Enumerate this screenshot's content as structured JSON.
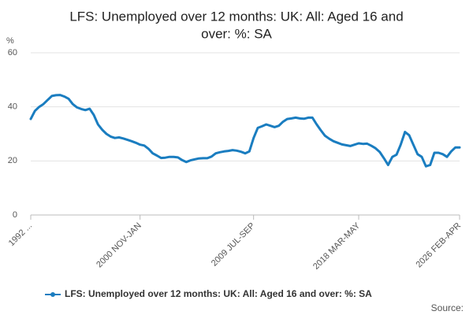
{
  "chart_data": {
    "type": "line",
    "title": [
      "LFS: Unemployed over 12 months: UK: All: Aged 16 and",
      "over: %: SA"
    ],
    "y_label": "%",
    "source": "Source:",
    "categories": [
      "1992 ...",
      null,
      null,
      null,
      null,
      null,
      null,
      null,
      null,
      null,
      null,
      null,
      null,
      null,
      null,
      null,
      null,
      null,
      null,
      null,
      null,
      null,
      null,
      null,
      null,
      null,
      "2000 NOV-JAN",
      null,
      null,
      null,
      null,
      null,
      null,
      null,
      null,
      null,
      null,
      null,
      null,
      null,
      null,
      null,
      null,
      null,
      null,
      null,
      null,
      null,
      null,
      null,
      null,
      null,
      null,
      "2009 JUL-SEP",
      null,
      null,
      null,
      null,
      null,
      null,
      null,
      null,
      null,
      null,
      null,
      null,
      null,
      null,
      null,
      null,
      null,
      null,
      null,
      null,
      null,
      null,
      null,
      null,
      "2018 MAR-MAY",
      null,
      null,
      null,
      null,
      null,
      null,
      null,
      null,
      null,
      null,
      null,
      null,
      null,
      null,
      null,
      null,
      null,
      null,
      null,
      null,
      null,
      null,
      null,
      "2026 FEB-APR"
    ],
    "series": [
      {
        "name": "LFS: Unemployed over 12 months: UK: All: Aged 16 and over: %: SA",
        "color": "#1a7dc0",
        "values": [
          35.5,
          38.5,
          40,
          41,
          42.5,
          44,
          44.3,
          44.4,
          43.8,
          43,
          41,
          39.8,
          39.2,
          38.8,
          39.3,
          37,
          33.5,
          31.5,
          30,
          29,
          28.5,
          28.7,
          28.3,
          27.8,
          27.3,
          26.7,
          26,
          25.7,
          24.5,
          22.8,
          22,
          21.1,
          21.2,
          21.5,
          21.5,
          21.3,
          20.3,
          19.6,
          20.2,
          20.6,
          20.9,
          21,
          21,
          21.6,
          22.8,
          23.2,
          23.5,
          23.7,
          24,
          23.8,
          23.4,
          22.8,
          23.5,
          28.5,
          32.2,
          32.8,
          33.5,
          33,
          32.5,
          33,
          34.5,
          35.5,
          35.7,
          36,
          35.7,
          35.6,
          36,
          36,
          33.5,
          31.3,
          29.3,
          28.2,
          27.3,
          26.7,
          26.1,
          25.8,
          25.5,
          26,
          26.5,
          26.3,
          26.4,
          25.6,
          24.7,
          23.3,
          21,
          18.5,
          21.5,
          22.3,
          26,
          30.7,
          29.5,
          26,
          22.5,
          21.5,
          18,
          18.5,
          23,
          23,
          22.5,
          21.5,
          23.5,
          25,
          25
        ]
      }
    ],
    "ylim": [
      0,
      60
    ],
    "yticks": [
      0,
      20,
      40,
      60
    ],
    "grid": true
  }
}
